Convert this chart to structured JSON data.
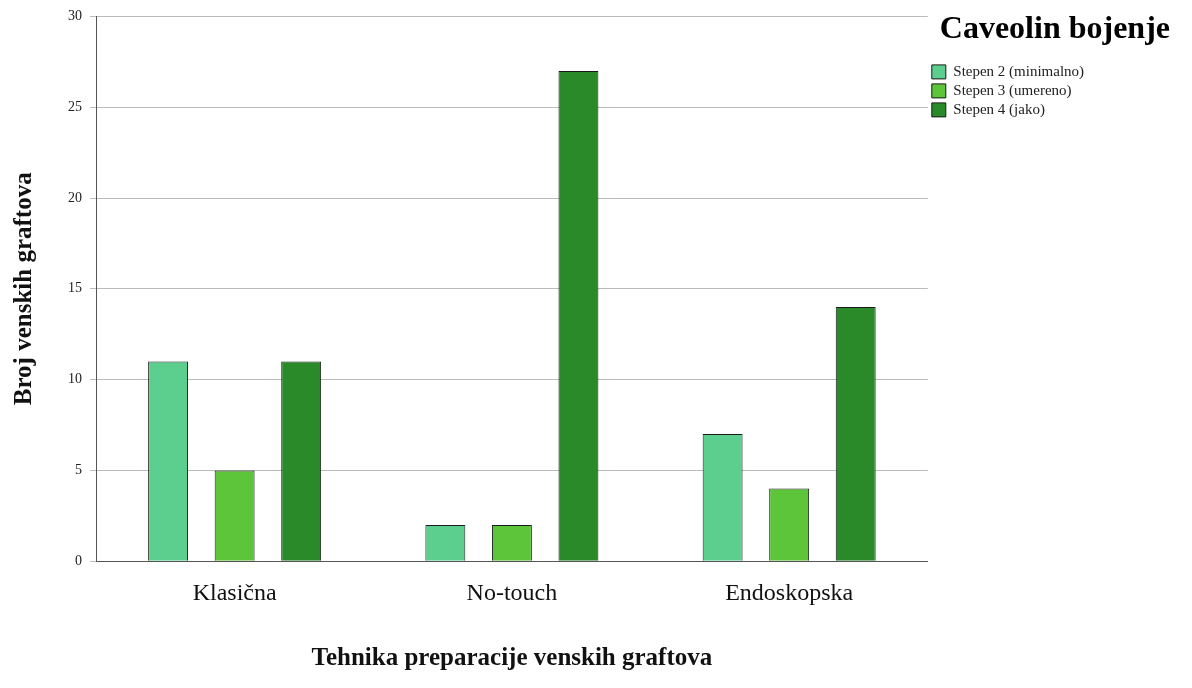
{
  "chart_data": {
    "type": "bar",
    "xlabel": "Tehnika preparacije venskih graftova",
    "ylabel": "Broj venskih graftova",
    "legend_title": "Caveolin bojenje",
    "categories": [
      "Klasična",
      "No-touch",
      "Endoskopska"
    ],
    "series": [
      {
        "name": "Stepen 2 (minimalno)",
        "color": "#5ccf8f",
        "values": [
          11,
          2,
          7
        ]
      },
      {
        "name": "Stepen 3 (umereno)",
        "color": "#5cc53a",
        "values": [
          5,
          2,
          4
        ]
      },
      {
        "name": "Stepen 4 (jako)",
        "color": "#2a8a2a",
        "values": [
          11,
          27,
          14
        ]
      }
    ],
    "ylim": [
      0,
      30
    ],
    "yticks": [
      0,
      5,
      10,
      15,
      20,
      25,
      30
    ],
    "grid": "y",
    "legend": "top right"
  }
}
